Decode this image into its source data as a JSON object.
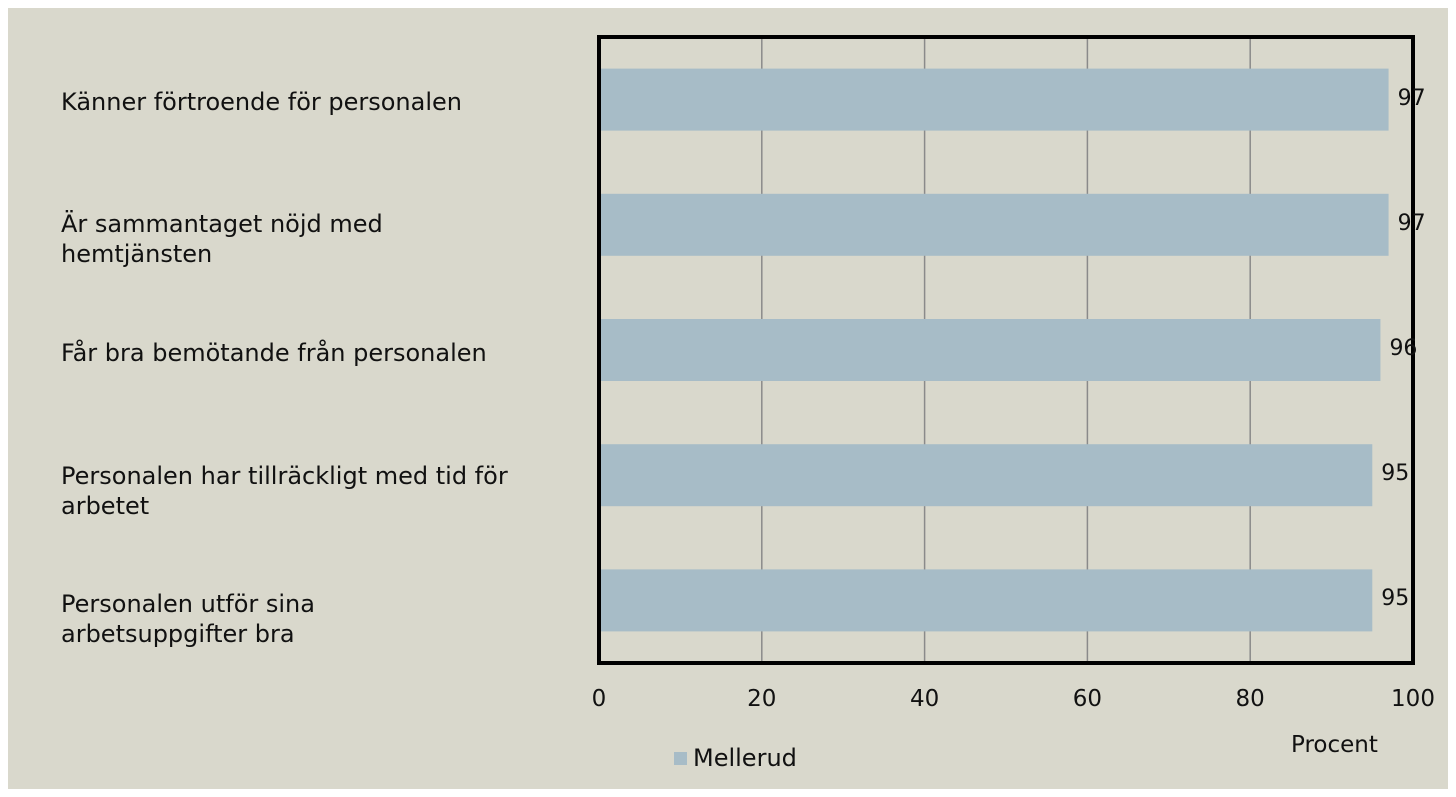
{
  "chart_data": {
    "type": "bar",
    "orientation": "horizontal",
    "categories": [
      "Känner förtroende för personalen",
      "Är sammantaget nöjd med hemtjänsten",
      "Får bra bemötande från personalen",
      "Personalen har tillräckligt med tid för arbetet",
      "Personalen utför sina arbetsuppgifter bra"
    ],
    "series": [
      {
        "name": "Mellerud",
        "values": [
          97,
          97,
          96,
          95,
          95
        ],
        "color": "#a7bcc7"
      }
    ],
    "data_labels": [
      "97",
      "97",
      "96",
      "95",
      "95"
    ],
    "xlim": [
      0,
      100
    ],
    "xticks": [
      "0",
      "20",
      "40",
      "60",
      "80",
      "100"
    ],
    "xlabel": "Procent",
    "grid": true,
    "legend_position": "bottom"
  },
  "colors": {
    "background": "#d9d8cc",
    "bar": "#a7bcc7",
    "gridline": "#8a8a8a",
    "frame": "#000000"
  }
}
